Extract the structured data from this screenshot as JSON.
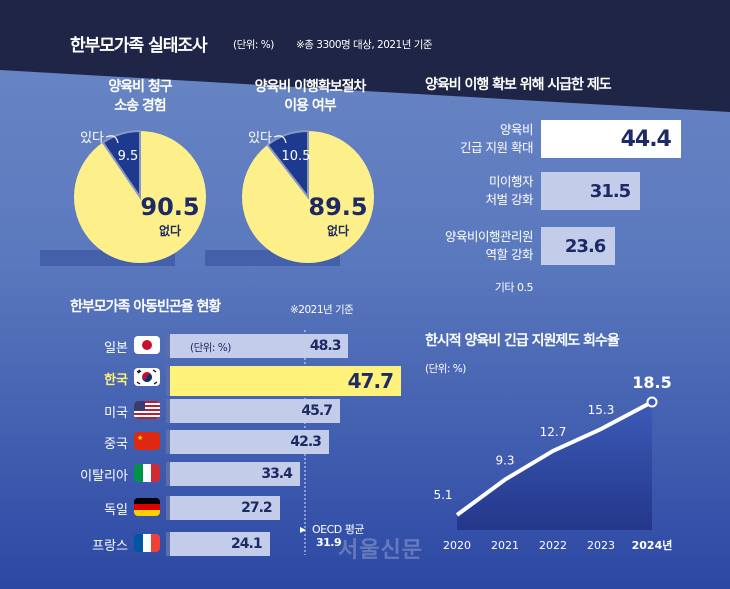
{
  "header": {
    "title": "한부모가족 실태조사",
    "unit": "(단위: %)",
    "note": "※총 3300명 대상, 2021년 기준"
  },
  "colors": {
    "navy": "#1f2546",
    "mid": "#6b88c6",
    "yellow": "#fdf08a",
    "dark_slice": "#1e3a8f",
    "bar_light": "#c3cdea",
    "highlight": "#fff27a"
  },
  "chart_data": [
    {
      "type": "pie",
      "title": "양육비 청구 소송 경험",
      "title_lines": [
        "양육비 청구",
        "소송 경험"
      ],
      "slices": [
        {
          "label": "있다",
          "value": 9.5,
          "value_text": "9.5"
        },
        {
          "label": "없다",
          "value": 90.5,
          "value_text": "90.5"
        }
      ]
    },
    {
      "type": "pie",
      "title": "양육비 이행확보절차 이용 여부",
      "title_lines": [
        "양육비 이행확보절차",
        "이용 여부"
      ],
      "slices": [
        {
          "label": "있다",
          "value": 10.5,
          "value_text": "10.5"
        },
        {
          "label": "없다",
          "value": 89.5,
          "value_text": "89.5"
        }
      ]
    },
    {
      "type": "bar",
      "title": "양육비 이행 확보 위해 시급한 제도",
      "categories": [
        [
          "양육비",
          "긴급 지원 확대"
        ],
        [
          "미이행자",
          "처벌 강화"
        ],
        [
          "양육비이행관리원",
          "역할 강화"
        ]
      ],
      "values": [
        44.4,
        31.5,
        23.6
      ],
      "value_texts": [
        "44.4",
        "31.5",
        "23.6"
      ],
      "other": "기타 0.5"
    },
    {
      "type": "bar",
      "title": "한부모가족 아동빈곤율 현황",
      "note": "※2021년 기준",
      "unit": "(단위: %)",
      "categories": [
        "일본",
        "한국",
        "미국",
        "중국",
        "이탈리아",
        "독일",
        "프랑스"
      ],
      "flags": [
        "japan",
        "korea",
        "usa",
        "china",
        "italy",
        "germany",
        "france"
      ],
      "values": [
        48.3,
        47.7,
        45.7,
        42.3,
        33.4,
        27.2,
        24.1
      ],
      "value_texts": [
        "48.3",
        "47.7",
        "45.7",
        "42.3",
        "33.4",
        "27.2",
        "24.1"
      ],
      "highlight": "한국",
      "reference": {
        "label": "OECD 평균",
        "value": 31.9,
        "value_text": "31.9"
      }
    },
    {
      "type": "area",
      "title": "한시적 양육비 긴급 지원제도 회수율",
      "unit": "(단위: %)",
      "x": [
        "2020",
        "2021",
        "2022",
        "2023",
        "2024년"
      ],
      "values": [
        5.1,
        9.3,
        12.7,
        15.3,
        18.5
      ],
      "value_texts": [
        "5.1",
        "9.3",
        "12.7",
        "15.3",
        "18.5"
      ]
    }
  ],
  "watermark": "서울신문"
}
